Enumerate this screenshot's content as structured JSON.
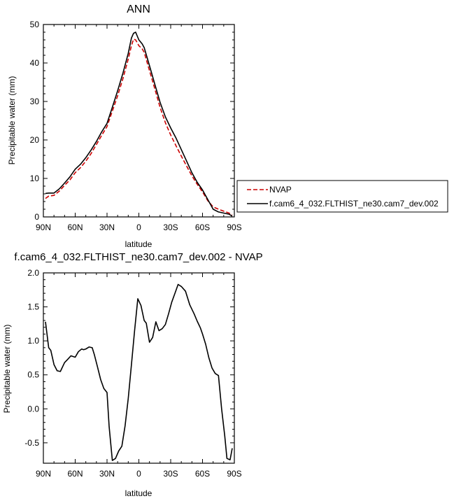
{
  "chart_data": [
    {
      "type": "line",
      "title": "ANN",
      "xlabel": "latitude",
      "ylabel": "Precipitable water (mm)",
      "xlim": [
        -90,
        90
      ],
      "ylim": [
        0,
        50
      ],
      "x_ticks": [
        -90,
        -60,
        -30,
        0,
        30,
        60,
        90
      ],
      "x_tick_labels": [
        "90N",
        "60N",
        "30N",
        "0",
        "30S",
        "60S",
        "90S"
      ],
      "y_ticks": [
        0,
        10,
        20,
        30,
        40,
        50
      ],
      "y_tick_labels": [
        "0",
        "10",
        "20",
        "30",
        "40",
        "50"
      ],
      "grid": false,
      "legend_placement": "right",
      "series": [
        {
          "name": "NVAP",
          "color": "#cc0000",
          "dash": "dashed",
          "x": [
            -88,
            -85,
            -80,
            -75,
            -70,
            -65,
            -60,
            -55,
            -50,
            -45,
            -40,
            -35,
            -30,
            -25,
            -20,
            -15,
            -10,
            -7,
            -5,
            -3,
            0,
            3,
            5,
            10,
            15,
            20,
            25,
            30,
            35,
            40,
            45,
            50,
            55,
            60,
            65,
            70,
            75,
            80,
            85,
            88
          ],
          "y": [
            4.8,
            5.4,
            5.6,
            6.7,
            8.2,
            9.6,
            11.5,
            12.8,
            14.5,
            16.5,
            18.8,
            21.2,
            23.5,
            27.5,
            31.5,
            36.0,
            41.0,
            44.5,
            46.2,
            46.0,
            44.5,
            43.7,
            42.8,
            38.0,
            33.3,
            28.5,
            24.5,
            21.3,
            18.5,
            15.8,
            13.2,
            10.7,
            8.5,
            6.5,
            4.2,
            2.6,
            2.0,
            1.5,
            1.0,
            0.5
          ]
        },
        {
          "name": "f.cam6_4_032.FLTHIST_ne30.cam7_dev.002",
          "color": "#000000",
          "dash": "solid",
          "x": [
            -88,
            -85,
            -80,
            -75,
            -70,
            -65,
            -60,
            -55,
            -50,
            -45,
            -40,
            -35,
            -30,
            -25,
            -20,
            -15,
            -10,
            -7,
            -5,
            -3,
            0,
            3,
            5,
            10,
            15,
            20,
            25,
            30,
            35,
            40,
            45,
            50,
            55,
            60,
            65,
            70,
            75,
            80,
            85,
            88
          ],
          "y": [
            6.1,
            6.2,
            6.2,
            7.3,
            8.8,
            10.4,
            12.4,
            13.7,
            15.4,
            17.4,
            19.6,
            22.1,
            24.3,
            28.5,
            32.8,
            37.4,
            42.5,
            46.5,
            47.7,
            48.0,
            46.0,
            45.0,
            44.0,
            39.3,
            34.5,
            29.8,
            26.0,
            23.1,
            20.5,
            17.5,
            14.5,
            11.5,
            9.0,
            7.0,
            4.5,
            2.0,
            1.3,
            1.0,
            0.7,
            0.2
          ]
        }
      ]
    },
    {
      "type": "line",
      "title": "f.cam6_4_032.FLTHIST_ne30.cam7_dev.002 - NVAP",
      "xlabel": "latitude",
      "ylabel": "Precipitable water (mm)",
      "xlim": [
        -90,
        90
      ],
      "ylim": [
        -0.8,
        2.0
      ],
      "x_ticks": [
        -90,
        -60,
        -30,
        0,
        30,
        60,
        90
      ],
      "x_tick_labels": [
        "90N",
        "60N",
        "30N",
        "0",
        "30S",
        "60S",
        "90S"
      ],
      "y_ticks": [
        -0.5,
        0.0,
        0.5,
        1.0,
        1.5,
        2.0
      ],
      "y_tick_labels": [
        "-0.5",
        "0.0",
        "0.5",
        "1.0",
        "1.5",
        "2.0"
      ],
      "grid": false,
      "series": [
        {
          "color": "#000000",
          "dash": "solid",
          "x": [
            -88,
            -85,
            -83,
            -80,
            -77,
            -74,
            -70,
            -67,
            -64,
            -60,
            -57,
            -54,
            -52,
            -50,
            -47,
            -44,
            -42,
            -39,
            -36,
            -33,
            -30,
            -28,
            -25,
            -22,
            -19,
            -16,
            -13,
            -10,
            -7,
            -4,
            -1,
            2,
            5,
            7,
            10,
            13,
            16,
            19,
            22,
            25,
            28,
            31,
            34,
            37,
            40,
            44,
            48,
            52,
            55,
            58,
            60,
            63,
            66,
            69,
            72,
            75,
            78,
            81,
            83,
            86,
            88
          ],
          "y": [
            1.28,
            0.9,
            0.86,
            0.65,
            0.56,
            0.55,
            0.68,
            0.73,
            0.78,
            0.76,
            0.84,
            0.88,
            0.87,
            0.88,
            0.91,
            0.9,
            0.8,
            0.62,
            0.43,
            0.3,
            0.24,
            -0.26,
            -0.76,
            -0.73,
            -0.62,
            -0.55,
            -0.25,
            0.15,
            0.65,
            1.15,
            1.62,
            1.52,
            1.3,
            1.26,
            0.98,
            1.05,
            1.28,
            1.15,
            1.18,
            1.24,
            1.4,
            1.57,
            1.7,
            1.83,
            1.8,
            1.73,
            1.53,
            1.4,
            1.29,
            1.19,
            1.1,
            0.95,
            0.75,
            0.6,
            0.52,
            0.49,
            0.0,
            -0.4,
            -0.73,
            -0.75,
            -0.58
          ]
        }
      ]
    }
  ]
}
